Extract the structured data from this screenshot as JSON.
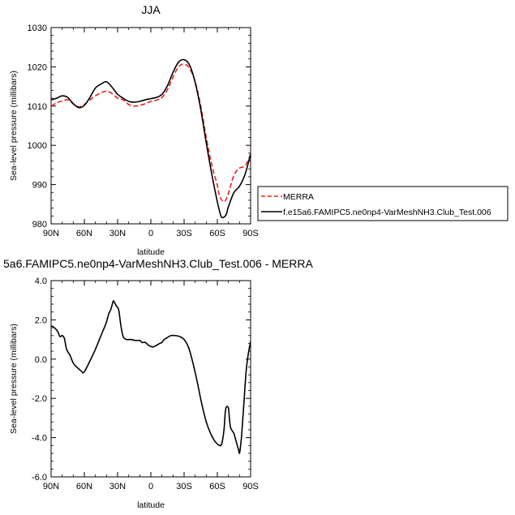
{
  "chart_data": [
    {
      "type": "line",
      "title": "JJA",
      "xlabel": "latitude",
      "ylabel": "Sea-level pressure (millibars)",
      "xlim": [
        90,
        -90
      ],
      "ylim": [
        980,
        1030
      ],
      "x_ticks": [
        90,
        60,
        30,
        0,
        -30,
        -60,
        -90
      ],
      "x_tick_labels": [
        "90N",
        "60N",
        "30N",
        "0",
        "30S",
        "60S",
        "90S"
      ],
      "y_ticks": [
        980,
        990,
        1000,
        1010,
        1020,
        1030
      ],
      "y_tick_labels": [
        "980",
        "990",
        "1000",
        "1010",
        "1020",
        "1030"
      ],
      "legend_position": "right",
      "series": [
        {
          "name": "MERRA",
          "color": "#e8201a",
          "dash": "dashed",
          "x": [
            90,
            85,
            80,
            75,
            70,
            65,
            60,
            55,
            50,
            45,
            40,
            35,
            30,
            25,
            20,
            15,
            10,
            5,
            0,
            -5,
            -10,
            -15,
            -20,
            -25,
            -30,
            -35,
            -40,
            -45,
            -50,
            -55,
            -60,
            -62,
            -65,
            -67,
            -70,
            -75,
            -80,
            -85,
            -90
          ],
          "y": [
            1010.0,
            1010.8,
            1011.3,
            1011.6,
            1010.6,
            1009.8,
            1010.4,
            1011.6,
            1012.6,
            1013.4,
            1013.8,
            1013.2,
            1012.0,
            1011.6,
            1010.4,
            1010.0,
            1010.2,
            1010.6,
            1011.2,
            1011.5,
            1012.2,
            1014.2,
            1017.4,
            1020.0,
            1020.7,
            1019.6,
            1016.2,
            1010.0,
            1002.0,
            995.0,
            989.8,
            987.0,
            985.8,
            985.8,
            987.8,
            992.4,
            994.2,
            994.8,
            997.6
          ]
        },
        {
          "name": "f.e15a6.FAMIPC5.ne0np4-VarMeshNH3.Club_Test.006",
          "color": "#000000",
          "dash": "solid",
          "x": [
            90,
            85,
            80,
            75,
            70,
            65,
            60,
            55,
            50,
            45,
            40,
            35,
            30,
            25,
            20,
            15,
            10,
            5,
            0,
            -5,
            -10,
            -15,
            -20,
            -25,
            -30,
            -35,
            -40,
            -45,
            -50,
            -55,
            -60,
            -63,
            -65,
            -68,
            -70,
            -75,
            -80,
            -85,
            -90
          ],
          "y": [
            1011.6,
            1012.0,
            1012.6,
            1012.2,
            1010.6,
            1009.6,
            1010.2,
            1012.2,
            1014.6,
            1015.6,
            1016.2,
            1014.8,
            1013.0,
            1012.0,
            1011.2,
            1011.0,
            1011.2,
            1011.6,
            1011.9,
            1012.2,
            1013.0,
            1015.2,
            1018.6,
            1021.2,
            1021.8,
            1020.4,
            1016.0,
            1009.2,
            1000.6,
            992.6,
            985.6,
            982.2,
            981.6,
            982.4,
            984.4,
            988.0,
            989.6,
            992.6,
            997.8
          ]
        }
      ]
    },
    {
      "type": "line",
      "title": "5a6.FAMIPC5.ne0np4-VarMeshNH3.Club_Test.006 - MERRA",
      "xlabel": "latitude",
      "ylabel": "Sea-level pressure (millibars)",
      "xlim": [
        90,
        -90
      ],
      "ylim": [
        -6,
        4
      ],
      "x_ticks": [
        90,
        60,
        30,
        0,
        -30,
        -60,
        -90
      ],
      "x_tick_labels": [
        "90N",
        "60N",
        "30N",
        "0",
        "30S",
        "60S",
        "90S"
      ],
      "y_ticks": [
        -6,
        -4,
        -2,
        0,
        2,
        4
      ],
      "y_tick_labels": [
        "-6.0",
        "-4.0",
        "-2.0",
        "0.0",
        "2.0",
        "4.0"
      ],
      "series": [
        {
          "color": "#000000",
          "x": [
            90,
            87,
            84,
            82,
            80,
            78,
            76,
            73,
            70,
            67,
            63,
            61,
            59,
            55,
            50,
            45,
            42,
            40,
            38,
            36,
            34,
            33,
            31,
            29,
            27,
            25,
            22,
            18,
            14,
            10,
            8,
            5,
            2,
            0,
            -2,
            -5,
            -8,
            -10,
            -12,
            -15,
            -18,
            -22,
            -26,
            -30,
            -34,
            -38,
            -42,
            -46,
            -50,
            -54,
            -58,
            -62,
            -64,
            -66,
            -67,
            -68,
            -70,
            -71,
            -72,
            -74,
            -75,
            -77,
            -79,
            -80,
            -81,
            -82,
            -84,
            -86,
            -88,
            -90
          ],
          "y": [
            1.7,
            1.6,
            1.4,
            1.15,
            1.2,
            1.05,
            0.5,
            0.2,
            -0.2,
            -0.4,
            -0.6,
            -0.7,
            -0.55,
            -0.1,
            0.5,
            1.2,
            1.6,
            1.9,
            2.3,
            2.55,
            2.95,
            2.9,
            2.7,
            2.5,
            1.7,
            1.15,
            1.0,
            1.0,
            0.95,
            0.95,
            0.85,
            0.85,
            0.7,
            0.65,
            0.62,
            0.7,
            0.8,
            0.85,
            1.0,
            1.1,
            1.2,
            1.2,
            1.15,
            1.0,
            0.6,
            -0.2,
            -1.2,
            -2.3,
            -3.2,
            -3.8,
            -4.2,
            -4.4,
            -4.3,
            -3.6,
            -2.8,
            -2.45,
            -2.5,
            -3.1,
            -3.5,
            -3.7,
            -3.8,
            -4.2,
            -4.6,
            -4.8,
            -4.4,
            -3.8,
            -2.2,
            -0.6,
            0.3,
            0.9
          ]
        }
      ]
    }
  ]
}
